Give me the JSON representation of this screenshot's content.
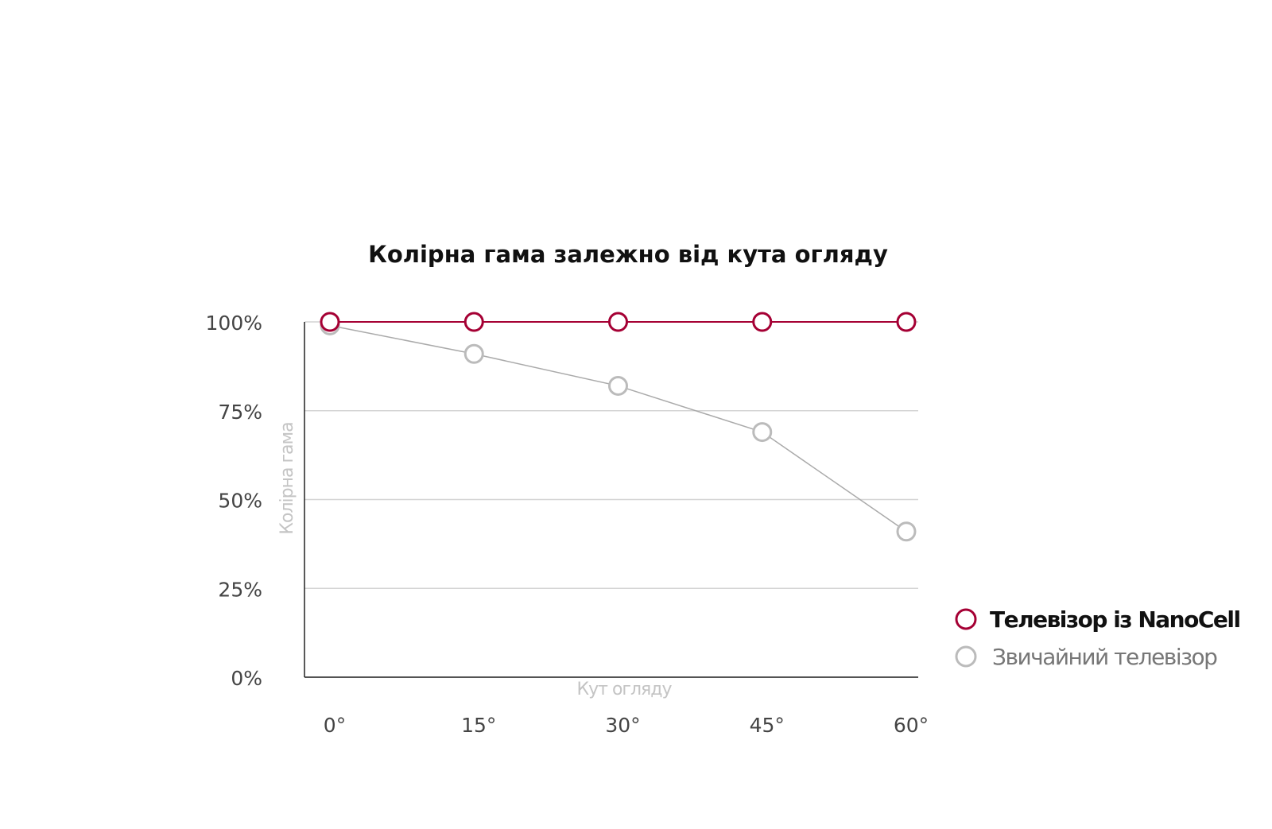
{
  "chart_data": {
    "type": "line",
    "title": "Колірна гама залежно від кута огляду",
    "x_label": "Кут огляду",
    "y_label": "Колірна гама",
    "categories": [
      "0°",
      "15°",
      "30°",
      "45°",
      "60°"
    ],
    "series": [
      {
        "name": "Телевізор із NanoCell",
        "color": "#a50034",
        "values": [
          100,
          100,
          100,
          100,
          100
        ]
      },
      {
        "name": "Звичайний телевізор",
        "color": "#bbbbbb",
        "values": [
          99,
          91,
          82,
          69,
          41
        ]
      }
    ],
    "ylim": [
      0,
      100
    ],
    "yticks": [
      {
        "value": 0,
        "label": "0%"
      },
      {
        "value": 25,
        "label": "25%"
      },
      {
        "value": 50,
        "label": "50%"
      },
      {
        "value": 75,
        "label": "75%"
      },
      {
        "value": 100,
        "label": "100%"
      }
    ],
    "grid": true,
    "legend": "right"
  }
}
